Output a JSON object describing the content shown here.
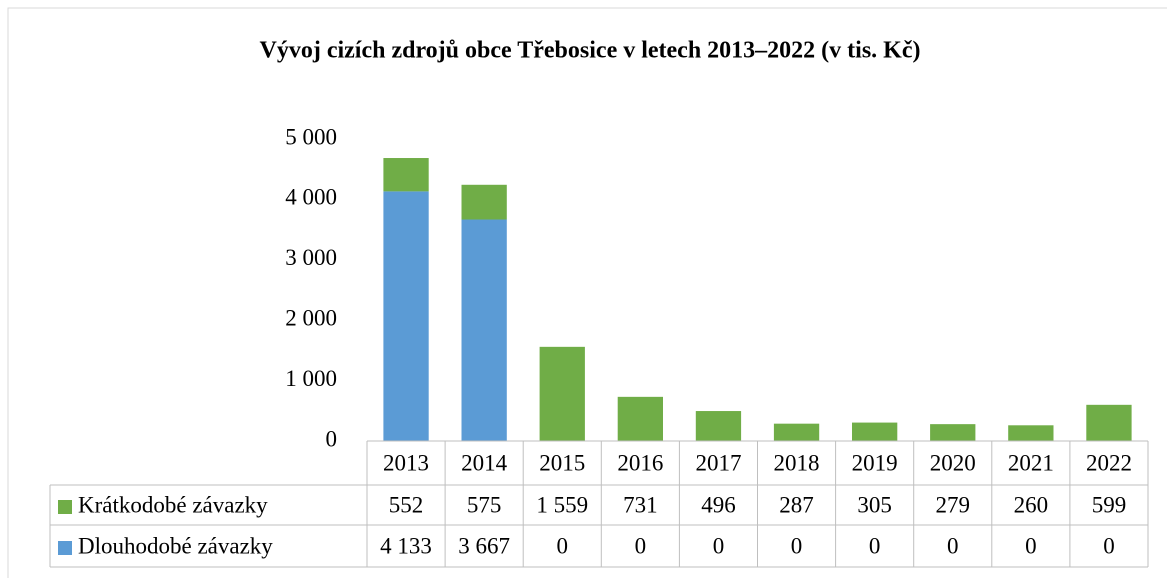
{
  "chart_data": {
    "type": "bar",
    "stacked": true,
    "title": "Vývoj cizích zdrojů obce Třebosice v letech 2013–2022 (v tis. Kč)",
    "categories": [
      "2013",
      "2014",
      "2015",
      "2016",
      "2017",
      "2018",
      "2019",
      "2020",
      "2021",
      "2022"
    ],
    "series": [
      {
        "name": "Krátkodobé závazky",
        "color": "#70ad47",
        "values": [
          552,
          575,
          1559,
          731,
          496,
          287,
          305,
          279,
          260,
          599
        ],
        "value_labels": [
          "552",
          "575",
          "1 559",
          "731",
          "496",
          "287",
          "305",
          "279",
          "260",
          "599"
        ]
      },
      {
        "name": "Dlouhodobé závazky",
        "color": "#5b9bd5",
        "values": [
          4133,
          3667,
          0,
          0,
          0,
          0,
          0,
          0,
          0,
          0
        ],
        "value_labels": [
          "4 133",
          "3 667",
          "0",
          "0",
          "0",
          "0",
          "0",
          "0",
          "0",
          "0"
        ]
      }
    ],
    "ylim": [
      0,
      5000
    ],
    "yticks": [
      0,
      {
        "value": 1000,
        "label": "1 000"
      },
      {
        "value": 2000,
        "label": "2 000"
      },
      {
        "value": 3000,
        "label": "3 000"
      },
      {
        "value": 4000,
        "label": "4 000"
      },
      {
        "value": 5000,
        "label": "5 000"
      }
    ],
    "grid": false,
    "legend": "table"
  }
}
